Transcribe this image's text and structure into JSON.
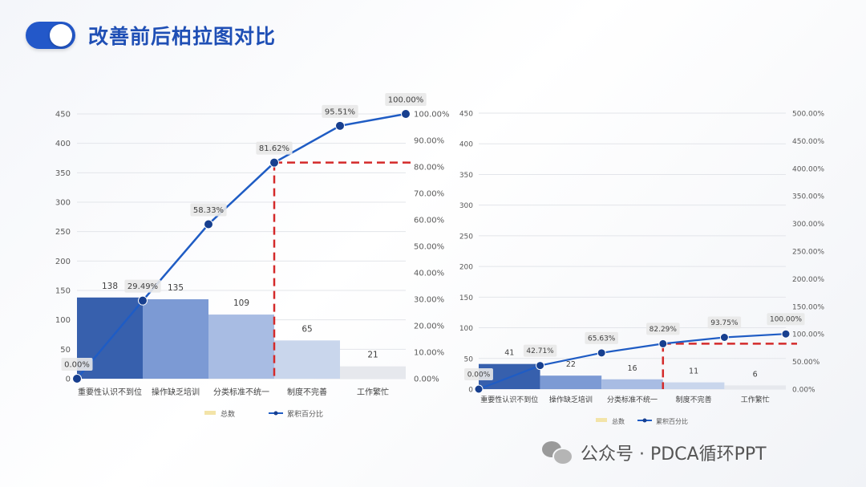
{
  "header": {
    "title": "改善前后柏拉图对比"
  },
  "footer": {
    "account": "公众号 · PDCA循环PPT"
  },
  "colors": {
    "title": "#1f4fb5",
    "line": "#1f5cc4",
    "marker": "#173f8f",
    "cutoff": "#d42a2a",
    "bars": [
      "#3760ad",
      "#7c9ad4",
      "#a8bce3",
      "#c9d6ec",
      "#e6e8ed"
    ]
  },
  "chart_data": [
    {
      "type": "bar",
      "categories": [
        "重要性认识不到位",
        "操作缺乏培训",
        "分类标准不统一",
        "制度不完善",
        "工作繁忙"
      ],
      "series": [
        {
          "name": "总数",
          "type": "bar",
          "values": [
            138,
            135,
            109,
            65,
            21
          ]
        },
        {
          "name": "累积百分比",
          "type": "line",
          "x": [
            0,
            1,
            2,
            3,
            4,
            5
          ],
          "values": [
            0,
            29.49,
            58.33,
            81.62,
            95.51,
            100.0
          ]
        }
      ],
      "line_labels": [
        "0.00%",
        "29.49%",
        "58.33%",
        "81.62%",
        "95.51%",
        "100.00%"
      ],
      "cutoff": {
        "index": 3,
        "percent": 81.62
      },
      "ylim": [
        0,
        450
      ],
      "yticks": [
        0,
        50,
        100,
        150,
        200,
        250,
        300,
        350,
        400,
        450
      ],
      "y2lim": [
        0,
        100
      ],
      "y2ticks": [
        "0.00%",
        "10.00%",
        "20.00%",
        "30.00%",
        "40.00%",
        "50.00%",
        "60.00%",
        "70.00%",
        "80.00%",
        "90.00%",
        "100.00%"
      ],
      "legend": "bottom",
      "grid": true
    },
    {
      "type": "bar",
      "categories": [
        "重要性认识不到位",
        "操作缺乏培训",
        "分类标准不统一",
        "制度不完善",
        "工作繁忙"
      ],
      "series": [
        {
          "name": "总数",
          "type": "bar",
          "values": [
            41,
            22,
            16,
            11,
            6
          ]
        },
        {
          "name": "累积百分比",
          "type": "line",
          "x": [
            0,
            1,
            2,
            3,
            4,
            5
          ],
          "values": [
            0,
            42.71,
            65.63,
            82.29,
            93.75,
            100.0
          ]
        }
      ],
      "line_labels": [
        "0.00%",
        "42.71%",
        "65.63%",
        "82.29%",
        "93.75%",
        "100.00%"
      ],
      "cutoff": {
        "index": 3,
        "percent": 82.29
      },
      "ylim": [
        0,
        450
      ],
      "yticks": [
        0,
        50,
        100,
        150,
        200,
        250,
        300,
        350,
        400,
        450
      ],
      "y2lim": [
        0,
        500
      ],
      "y2ticks": [
        "0.00%",
        "50.00%",
        "100.00%",
        "150.00%",
        "200.00%",
        "250.00%",
        "300.00%",
        "350.00%",
        "400.00%",
        "450.00%",
        "500.00%"
      ],
      "legend": "bottom",
      "grid": true
    }
  ]
}
